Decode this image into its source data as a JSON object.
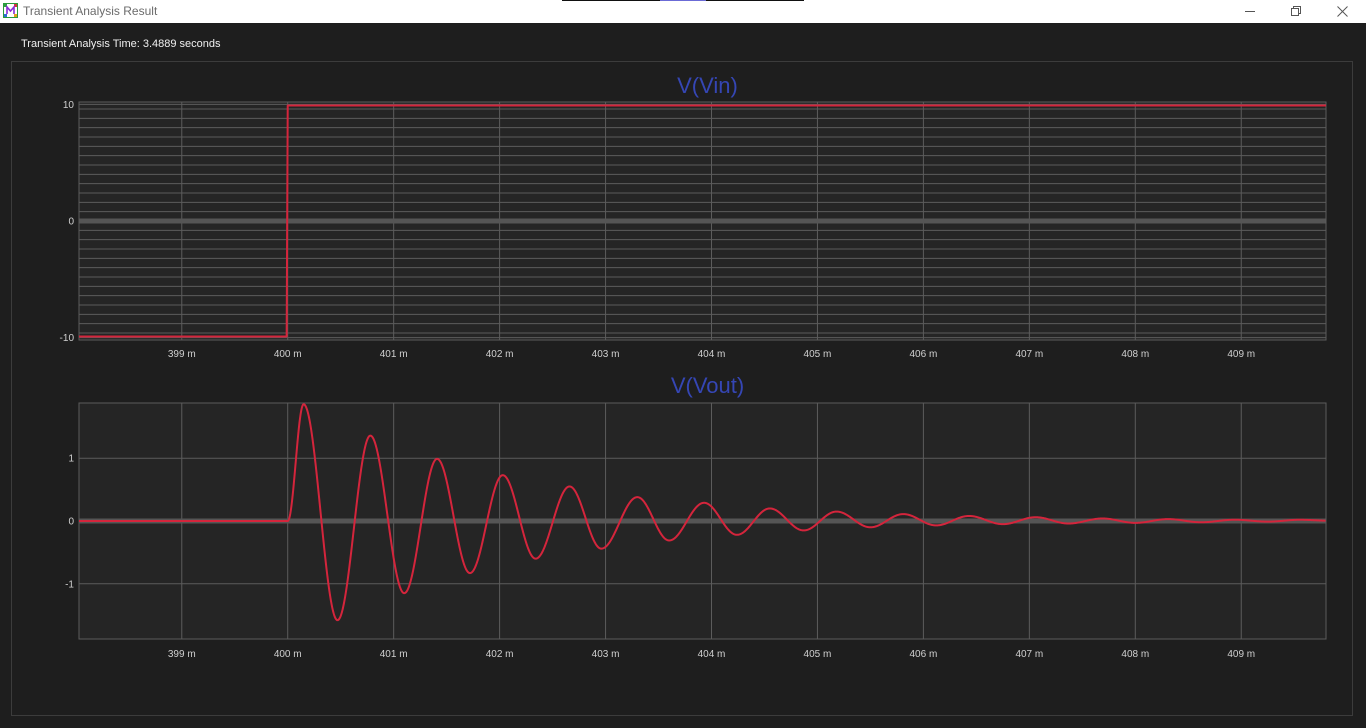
{
  "window": {
    "title": "Transient Analysis Result",
    "app_icon": "app-logo-icon",
    "controls": [
      "minimize-icon",
      "restore-icon",
      "close-icon"
    ]
  },
  "status": {
    "text": "Transient Analysis Time: 3.4889 seconds"
  },
  "colors": {
    "background": "#1e1e1e",
    "plot_area": "#252525",
    "grid": "#5c5c5c",
    "zero_line": "#555555",
    "trace": "#d4253c",
    "title": "#3546b4",
    "tick_text": "#d0d0d0"
  },
  "chart_data": [
    {
      "type": "line",
      "title": "V(Vin)",
      "xlabel": "",
      "ylabel": "",
      "xlim": [
        398.03,
        409.8
      ],
      "ylim": [
        -10.2,
        10.2
      ],
      "x_ticks": [
        399,
        400,
        401,
        402,
        403,
        404,
        405,
        406,
        407,
        408,
        409
      ],
      "x_tick_labels": [
        "399 m",
        "400 m",
        "401 m",
        "402 m",
        "403 m",
        "404 m",
        "405 m",
        "406 m",
        "407 m",
        "408 m",
        "409 m"
      ],
      "y_ticks": [
        10,
        0,
        -10
      ],
      "y_tick_labels": [
        "10",
        "0",
        "-10"
      ],
      "y_minor_step": 0.8,
      "grid": true,
      "series": [
        {
          "x": [
            398.03,
            399.0,
            399.99,
            400.0,
            401.0,
            405.0,
            409.8
          ],
          "y": [
            -9.9,
            -9.9,
            -9.9,
            9.9,
            9.9,
            9.9,
            9.9
          ]
        }
      ]
    },
    {
      "type": "line",
      "title": "V(Vout)",
      "xlabel": "",
      "ylabel": "",
      "xlim": [
        398.03,
        409.8
      ],
      "ylim": [
        -1.88,
        1.88
      ],
      "x_ticks": [
        399,
        400,
        401,
        402,
        403,
        404,
        405,
        406,
        407,
        408,
        409
      ],
      "x_tick_labels": [
        "399 m",
        "400 m",
        "401 m",
        "402 m",
        "403 m",
        "404 m",
        "405 m",
        "406 m",
        "407 m",
        "408 m",
        "409 m"
      ],
      "y_ticks": [
        1,
        0,
        -1
      ],
      "y_tick_labels": [
        "1",
        "0",
        "-1"
      ],
      "grid": true,
      "response": {
        "step_time": 400.0,
        "period": 0.62,
        "peaks": [
          {
            "x": 400.15,
            "y": 1.86
          },
          {
            "x": 400.47,
            "y": -1.58
          },
          {
            "x": 400.78,
            "y": 1.36
          },
          {
            "x": 401.1,
            "y": -1.15
          },
          {
            "x": 401.41,
            "y": 0.99
          },
          {
            "x": 401.72,
            "y": -0.83
          },
          {
            "x": 402.03,
            "y": 0.73
          },
          {
            "x": 402.34,
            "y": -0.6
          },
          {
            "x": 402.66,
            "y": 0.55
          },
          {
            "x": 402.96,
            "y": -0.44
          },
          {
            "x": 403.3,
            "y": 0.38
          },
          {
            "x": 403.6,
            "y": -0.31
          },
          {
            "x": 403.93,
            "y": 0.29
          },
          {
            "x": 404.24,
            "y": -0.22
          },
          {
            "x": 404.55,
            "y": 0.2
          },
          {
            "x": 404.87,
            "y": -0.15
          },
          {
            "x": 405.18,
            "y": 0.15
          },
          {
            "x": 405.5,
            "y": -0.1
          },
          {
            "x": 405.81,
            "y": 0.11
          },
          {
            "x": 406.12,
            "y": -0.07
          },
          {
            "x": 406.43,
            "y": 0.08
          },
          {
            "x": 406.75,
            "y": -0.05
          },
          {
            "x": 407.06,
            "y": 0.06
          },
          {
            "x": 407.37,
            "y": -0.04
          },
          {
            "x": 407.69,
            "y": 0.04
          },
          {
            "x": 408.0,
            "y": -0.03
          },
          {
            "x": 408.31,
            "y": 0.03
          },
          {
            "x": 408.62,
            "y": -0.02
          },
          {
            "x": 408.94,
            "y": 0.02
          },
          {
            "x": 409.25,
            "y": -0.01
          },
          {
            "x": 409.56,
            "y": 0.02
          }
        ],
        "pre_step_level": 0.0
      }
    }
  ]
}
